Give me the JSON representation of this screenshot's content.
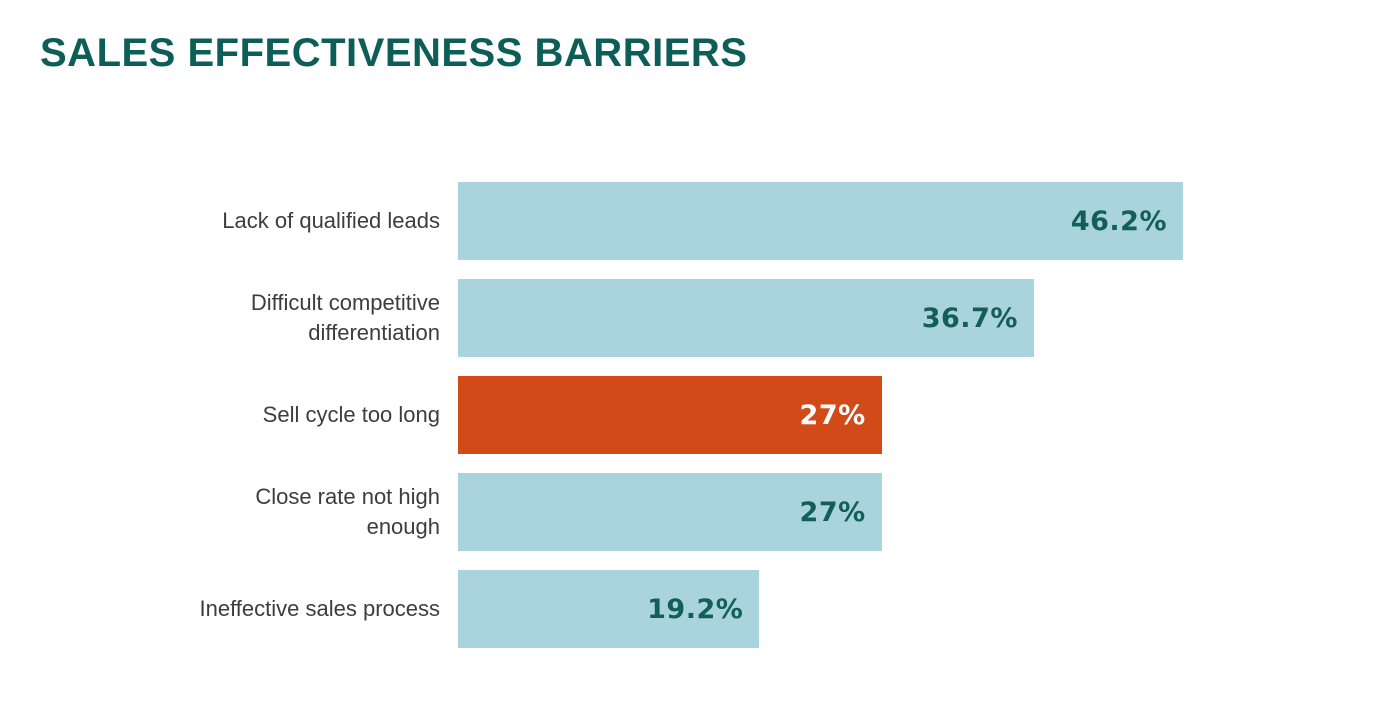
{
  "chart_data": {
    "type": "bar",
    "orientation": "horizontal",
    "title": "SALES EFFECTIVENESS BARRIERS",
    "categories": [
      "Lack of qualified leads",
      "Difficult competitive differentiation",
      "Sell cycle too long",
      "Close rate not high enough",
      "Ineffective sales process"
    ],
    "values": [
      46.2,
      36.7,
      27,
      27,
      19.2
    ],
    "value_labels": [
      "46.2%",
      "36.7%",
      "27%",
      "27%",
      "19.2%"
    ],
    "highlighted_index": 2,
    "xlim": [
      0,
      46.2
    ],
    "grid": false,
    "legend": false,
    "colors": {
      "background": "#ffffff",
      "bar_default": "#a9d4dd",
      "bar_highlight": "#d14a18",
      "value_text_default": "#135f58",
      "value_text_highlight": "#ffffff",
      "title_text": "#0e5e58",
      "label_text": "#3d3d3d"
    }
  }
}
